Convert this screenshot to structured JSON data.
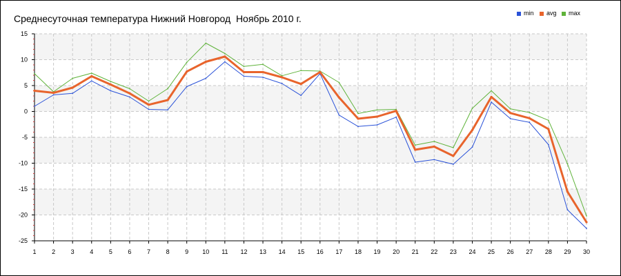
{
  "chart_data": {
    "type": "line",
    "title": "Среднесуточная температура Нижний Новгород  Ноябрь 2010 г.",
    "x": [
      1,
      2,
      3,
      4,
      5,
      6,
      7,
      8,
      9,
      10,
      11,
      12,
      13,
      14,
      15,
      16,
      17,
      18,
      19,
      20,
      21,
      22,
      23,
      24,
      25,
      26,
      27,
      28,
      29,
      30
    ],
    "ylim": [
      -25,
      15
    ],
    "yticks": [
      15,
      10,
      5,
      0,
      -5,
      -10,
      -15,
      -20,
      -25
    ],
    "grid": true,
    "legend_position": "top-right",
    "series": [
      {
        "name": "min",
        "color": "#2a52d8",
        "values": [
          1.0,
          3.2,
          3.5,
          5.9,
          4.0,
          2.8,
          0.4,
          0.3,
          4.8,
          6.4,
          9.6,
          6.8,
          6.6,
          5.4,
          3.1,
          7.3,
          -0.7,
          -2.9,
          -2.6,
          -1.1,
          -9.8,
          -9.3,
          -10.2,
          -6.9,
          1.8,
          -1.4,
          -2.1,
          -6.4,
          -19.0,
          -22.6
        ]
      },
      {
        "name": "avg",
        "color": "#e8642c",
        "values": [
          4.0,
          3.6,
          4.6,
          6.8,
          5.2,
          3.5,
          1.3,
          2.2,
          7.7,
          9.6,
          10.6,
          7.6,
          7.6,
          6.6,
          5.3,
          7.6,
          2.7,
          -1.4,
          -1.0,
          0.1,
          -7.4,
          -6.8,
          -8.6,
          -3.6,
          2.8,
          -0.3,
          -1.3,
          -3.4,
          -15.5,
          -21.4
        ]
      },
      {
        "name": "max",
        "color": "#5fb33a",
        "values": [
          7.3,
          3.8,
          6.4,
          7.4,
          5.8,
          4.4,
          2.0,
          4.4,
          9.5,
          13.2,
          11.2,
          8.7,
          9.1,
          6.9,
          7.9,
          7.8,
          5.6,
          -0.4,
          0.3,
          0.4,
          -6.5,
          -5.8,
          -7.0,
          0.6,
          4.0,
          0.5,
          -0.2,
          -1.7,
          -10.1,
          -20.2
        ]
      }
    ]
  }
}
